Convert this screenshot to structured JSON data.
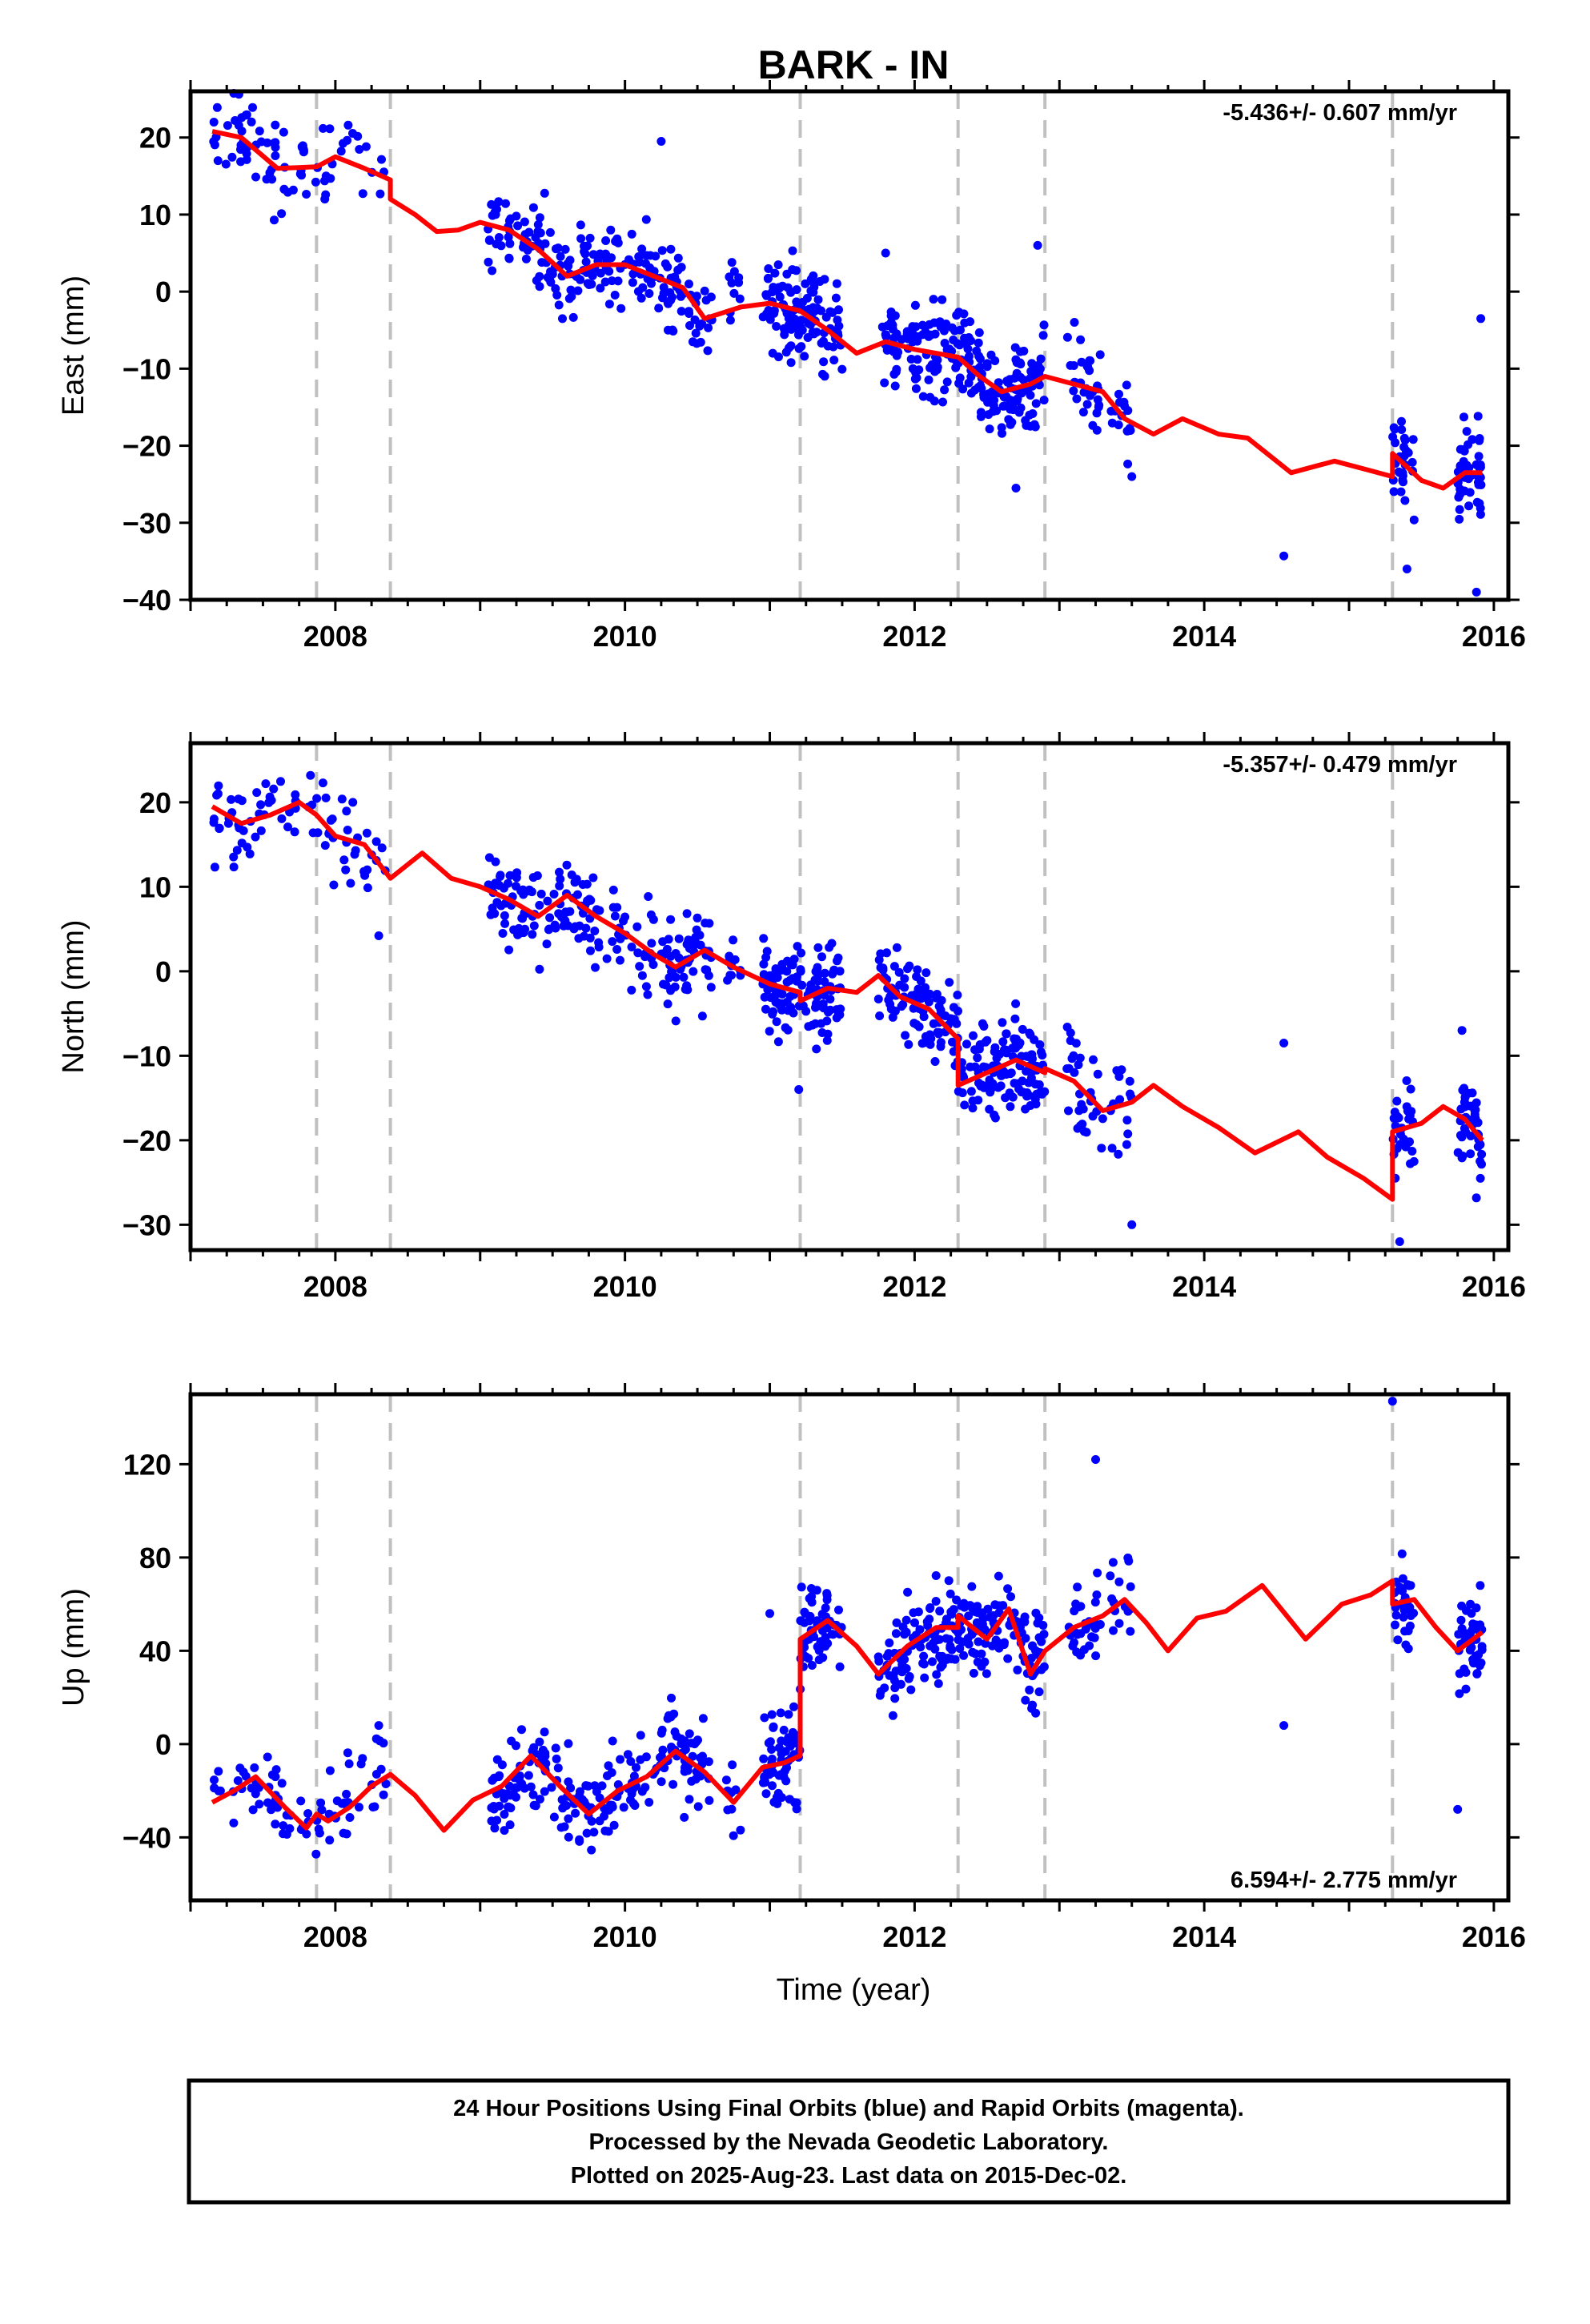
{
  "title": "BARK - IN",
  "x_label": "Time (year)",
  "footer": {
    "lines": [
      "24 Hour Positions Using Final Orbits (blue) and Rapid Orbits (magenta).",
      "Processed by the Nevada Geodetic Laboratory.",
      "Plotted on 2025-Aug-23. Last data on 2015-Dec-02."
    ]
  },
  "colors": {
    "data": "#0000ff",
    "model": "#ff0000",
    "offset_lines": "#c0c0c0",
    "frame": "#000000"
  },
  "chart_data": [
    {
      "type": "scatter",
      "component": "East",
      "ylabel": "East (mm)",
      "xlabel": "",
      "xlim": [
        2007.0,
        2016.1
      ],
      "ylim": [
        -40,
        26
      ],
      "x_ticks": [
        2008,
        2010,
        2012,
        2014,
        2016
      ],
      "y_ticks": [
        20,
        10,
        0,
        -10,
        -20,
        -30,
        -40
      ],
      "rate": "-5.436+/- 0.607 mm/yr",
      "rate_position": "top-right",
      "offset_epochs": [
        2007.87,
        2008.38,
        2011.21,
        2012.3,
        2012.9,
        2015.3
      ],
      "data_segments": [
        [
          2007.15,
          2008.35,
          80
        ],
        [
          2009.05,
          2010.6,
          200
        ],
        [
          2010.7,
          2010.8,
          10
        ],
        [
          2010.95,
          2011.5,
          120
        ],
        [
          2011.75,
          2012.9,
          220
        ],
        [
          2013.05,
          2013.3,
          30
        ],
        [
          2013.35,
          2013.5,
          15
        ],
        [
          2015.3,
          2015.45,
          30
        ],
        [
          2015.75,
          2015.92,
          45
        ]
      ],
      "model": [
        [
          2007.15,
          20.8
        ],
        [
          2007.35,
          20.0
        ],
        [
          2007.6,
          16.0
        ],
        [
          2007.87,
          16.2
        ],
        [
          2008.0,
          17.5
        ],
        [
          2008.2,
          16.0
        ],
        [
          2008.38,
          14.5
        ],
        [
          2008.38,
          12.0
        ],
        [
          2008.55,
          10.0
        ],
        [
          2008.7,
          7.8
        ],
        [
          2008.85,
          8.0
        ],
        [
          2009.0,
          9.0
        ],
        [
          2009.2,
          8.0
        ],
        [
          2009.4,
          5.5
        ],
        [
          2009.6,
          2.0
        ],
        [
          2009.8,
          3.5
        ],
        [
          2010.0,
          3.5
        ],
        [
          2010.2,
          2.0
        ],
        [
          2010.4,
          0.5
        ],
        [
          2010.55,
          -3.5
        ],
        [
          2010.8,
          -2.0
        ],
        [
          2011.0,
          -1.5
        ],
        [
          2011.21,
          -2.5
        ],
        [
          2011.4,
          -5.0
        ],
        [
          2011.6,
          -8.0
        ],
        [
          2011.8,
          -6.5
        ],
        [
          2012.0,
          -7.5
        ],
        [
          2012.3,
          -8.5
        ],
        [
          2012.45,
          -11.0
        ],
        [
          2012.6,
          -13.0
        ],
        [
          2012.8,
          -12.0
        ],
        [
          2012.9,
          -11.0
        ],
        [
          2013.1,
          -12.0
        ],
        [
          2013.3,
          -13.0
        ],
        [
          2013.45,
          -16.5
        ],
        [
          2013.65,
          -18.5
        ],
        [
          2013.85,
          -16.5
        ],
        [
          2014.1,
          -18.5
        ],
        [
          2014.3,
          -19.0
        ],
        [
          2014.6,
          -23.5
        ],
        [
          2014.9,
          -22.0
        ],
        [
          2015.1,
          -23.0
        ],
        [
          2015.3,
          -24.0
        ],
        [
          2015.3,
          -21.0
        ],
        [
          2015.5,
          -24.5
        ],
        [
          2015.65,
          -25.5
        ],
        [
          2015.8,
          -23.5
        ],
        [
          2015.92,
          -23.5
        ]
      ],
      "outliers": [
        [
          2010.25,
          19.5
        ],
        [
          2012.85,
          6.0
        ],
        [
          2011.8,
          5.0
        ],
        [
          2014.55,
          -34.3
        ],
        [
          2015.4,
          -36.0
        ],
        [
          2015.88,
          -39.0
        ],
        [
          2015.91,
          -3.5
        ],
        [
          2012.7,
          -25.5
        ],
        [
          2013.5,
          -24.0
        ]
      ]
    },
    {
      "type": "scatter",
      "component": "North",
      "ylabel": "North (mm)",
      "xlabel": "",
      "xlim": [
        2007.0,
        2016.1
      ],
      "ylim": [
        -33,
        27
      ],
      "x_ticks": [
        2008,
        2010,
        2012,
        2014,
        2016
      ],
      "y_ticks": [
        20,
        10,
        0,
        -10,
        -20,
        -30
      ],
      "rate": "-5.357+/- 0.479 mm/yr",
      "rate_position": "top-right",
      "offset_epochs": [
        2007.87,
        2008.38,
        2011.21,
        2012.3,
        2012.9,
        2015.3
      ],
      "data_segments": [
        [
          2007.15,
          2008.35,
          80
        ],
        [
          2009.05,
          2010.6,
          200
        ],
        [
          2010.7,
          2010.8,
          10
        ],
        [
          2010.95,
          2011.5,
          120
        ],
        [
          2011.75,
          2012.9,
          220
        ],
        [
          2013.05,
          2013.3,
          30
        ],
        [
          2013.35,
          2013.5,
          15
        ],
        [
          2015.3,
          2015.45,
          30
        ],
        [
          2015.75,
          2015.92,
          45
        ]
      ],
      "model": [
        [
          2007.15,
          19.5
        ],
        [
          2007.35,
          17.5
        ],
        [
          2007.55,
          18.5
        ],
        [
          2007.75,
          20.0
        ],
        [
          2007.87,
          18.5
        ],
        [
          2008.0,
          16.0
        ],
        [
          2008.2,
          15.0
        ],
        [
          2008.38,
          11.0
        ],
        [
          2008.6,
          14.0
        ],
        [
          2008.8,
          11.0
        ],
        [
          2009.0,
          10.0
        ],
        [
          2009.2,
          8.5
        ],
        [
          2009.4,
          6.5
        ],
        [
          2009.6,
          9.0
        ],
        [
          2009.8,
          6.5
        ],
        [
          2010.0,
          4.5
        ],
        [
          2010.2,
          2.0
        ],
        [
          2010.35,
          0.5
        ],
        [
          2010.55,
          2.5
        ],
        [
          2010.75,
          0.5
        ],
        [
          2011.0,
          -1.5
        ],
        [
          2011.21,
          -2.5
        ],
        [
          2011.21,
          -3.5
        ],
        [
          2011.4,
          -2.0
        ],
        [
          2011.6,
          -2.5
        ],
        [
          2011.75,
          -0.5
        ],
        [
          2011.9,
          -3.0
        ],
        [
          2012.1,
          -4.5
        ],
        [
          2012.3,
          -8.0
        ],
        [
          2012.3,
          -13.5
        ],
        [
          2012.5,
          -12.0
        ],
        [
          2012.7,
          -10.5
        ],
        [
          2012.9,
          -12.0
        ],
        [
          2012.9,
          -11.5
        ],
        [
          2013.1,
          -13.0
        ],
        [
          2013.3,
          -16.5
        ],
        [
          2013.5,
          -15.5
        ],
        [
          2013.65,
          -13.5
        ],
        [
          2013.85,
          -16.0
        ],
        [
          2014.1,
          -18.5
        ],
        [
          2014.35,
          -21.5
        ],
        [
          2014.65,
          -19.0
        ],
        [
          2014.85,
          -22.0
        ],
        [
          2015.1,
          -24.5
        ],
        [
          2015.3,
          -27.0
        ],
        [
          2015.3,
          -19.0
        ],
        [
          2015.5,
          -18.0
        ],
        [
          2015.65,
          -16.0
        ],
        [
          2015.8,
          -17.5
        ],
        [
          2015.92,
          -20.0
        ]
      ],
      "outliers": [
        [
          2014.55,
          -8.5
        ],
        [
          2011.2,
          -14.0
        ],
        [
          2013.5,
          -30.0
        ],
        [
          2015.35,
          -32.0
        ],
        [
          2008.3,
          4.2
        ],
        [
          2015.78,
          -7.0
        ]
      ]
    },
    {
      "type": "scatter",
      "component": "Up",
      "ylabel": "Up (mm)",
      "xlabel": "Time (year)",
      "xlim": [
        2007.0,
        2016.1
      ],
      "ylim": [
        -67,
        150
      ],
      "x_ticks": [
        2008,
        2010,
        2012,
        2014,
        2016
      ],
      "y_ticks": [
        120,
        80,
        40,
        0,
        -40
      ],
      "rate": "6.594+/- 2.775 mm/yr",
      "rate_position": "bottom-right",
      "offset_epochs": [
        2007.87,
        2008.38,
        2011.21,
        2012.3,
        2012.9,
        2015.3
      ],
      "data_segments": [
        [
          2007.15,
          2008.35,
          80
        ],
        [
          2009.05,
          2010.6,
          200
        ],
        [
          2010.7,
          2010.8,
          10
        ],
        [
          2010.95,
          2011.5,
          120
        ],
        [
          2011.75,
          2012.9,
          220
        ],
        [
          2013.05,
          2013.3,
          30
        ],
        [
          2013.35,
          2013.5,
          15
        ],
        [
          2015.3,
          2015.45,
          30
        ],
        [
          2015.75,
          2015.92,
          45
        ]
      ],
      "model": [
        [
          2007.15,
          -25.0
        ],
        [
          2007.3,
          -20.0
        ],
        [
          2007.45,
          -14.0
        ],
        [
          2007.65,
          -27.0
        ],
        [
          2007.8,
          -36.0
        ],
        [
          2007.87,
          -30.0
        ],
        [
          2007.95,
          -33.0
        ],
        [
          2008.1,
          -27.0
        ],
        [
          2008.25,
          -18.0
        ],
        [
          2008.38,
          -13.0
        ],
        [
          2008.55,
          -22.0
        ],
        [
          2008.75,
          -37.0
        ],
        [
          2008.95,
          -24.0
        ],
        [
          2009.15,
          -18.0
        ],
        [
          2009.35,
          -5.0
        ],
        [
          2009.55,
          -18.0
        ],
        [
          2009.75,
          -30.0
        ],
        [
          2009.95,
          -20.0
        ],
        [
          2010.15,
          -14.0
        ],
        [
          2010.35,
          -3.0
        ],
        [
          2010.55,
          -12.0
        ],
        [
          2010.75,
          -25.0
        ],
        [
          2010.95,
          -10.0
        ],
        [
          2011.1,
          -8.0
        ],
        [
          2011.21,
          -5.0
        ],
        [
          2011.21,
          45.0
        ],
        [
          2011.4,
          53.0
        ],
        [
          2011.6,
          42.0
        ],
        [
          2011.75,
          30.0
        ],
        [
          2011.95,
          42.0
        ],
        [
          2012.15,
          50.0
        ],
        [
          2012.3,
          50.0
        ],
        [
          2012.3,
          55.0
        ],
        [
          2012.5,
          45.0
        ],
        [
          2012.65,
          58.0
        ],
        [
          2012.8,
          30.0
        ],
        [
          2012.9,
          40.0
        ],
        [
          2013.1,
          50.0
        ],
        [
          2013.3,
          55.0
        ],
        [
          2013.45,
          62.0
        ],
        [
          2013.6,
          52.0
        ],
        [
          2013.75,
          40.0
        ],
        [
          2013.95,
          54.0
        ],
        [
          2014.15,
          57.0
        ],
        [
          2014.4,
          68.0
        ],
        [
          2014.7,
          45.0
        ],
        [
          2014.95,
          60.0
        ],
        [
          2015.15,
          64.0
        ],
        [
          2015.3,
          70.0
        ],
        [
          2015.3,
          60.0
        ],
        [
          2015.45,
          62.0
        ],
        [
          2015.6,
          50.0
        ],
        [
          2015.75,
          40.0
        ],
        [
          2015.92,
          48.0
        ]
      ],
      "outliers": [
        [
          2015.3,
          147.0
        ],
        [
          2013.25,
          122.0
        ],
        [
          2014.55,
          8.0
        ],
        [
          2015.75,
          -28.0
        ],
        [
          2011.0,
          56.0
        ],
        [
          2008.3,
          8.0
        ]
      ]
    }
  ]
}
